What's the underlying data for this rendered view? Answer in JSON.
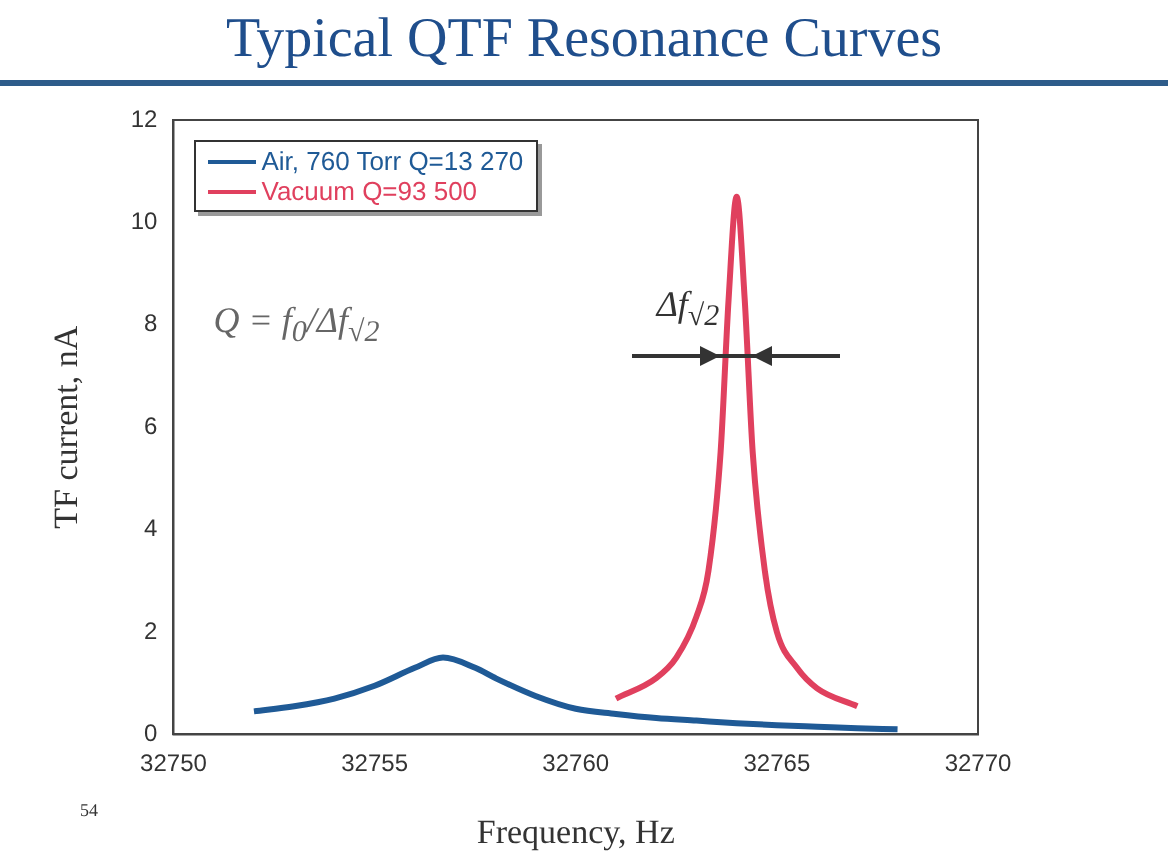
{
  "chart_data": {
    "type": "line",
    "title": "Typical QTF Resonance Curves",
    "xlabel": "Frequency, Hz",
    "ylabel": "TF current, nA",
    "xlim": [
      32750,
      32770
    ],
    "xticks": [
      32750,
      32755,
      32760,
      32765,
      32770
    ],
    "ylim": [
      0,
      12
    ],
    "yticks": [
      0,
      2,
      4,
      6,
      8,
      10,
      12
    ],
    "grid": false,
    "legend": "top left",
    "marker": "none",
    "line_style": "solid",
    "annotations": [
      "Q = f$_{0}$/Δf$_{√2}$",
      {
        "text": "Δf$_{√2}$",
        "x": 32764,
        "y": 7.4
      },
      "54"
    ],
    "series": [
      {
        "name": "Air, 760 Torr Q=13 270",
        "color": "#1f5a96",
        "x": [
          32752,
          32753,
          32754,
          32755,
          32756,
          32756.7,
          32757.5,
          32758,
          32759,
          32760,
          32761,
          32762,
          32763,
          32764,
          32765,
          32766,
          32767,
          32768
        ],
        "values": [
          0.45,
          0.55,
          0.7,
          0.95,
          1.3,
          1.5,
          1.3,
          1.1,
          0.75,
          0.5,
          0.4,
          0.32,
          0.27,
          0.22,
          0.18,
          0.15,
          0.12,
          0.1
        ]
      },
      {
        "name": "Vacuum Q=93 500",
        "color": "#e0405e",
        "x": [
          32761,
          32762,
          32762.5,
          32763,
          32763.3,
          32763.6,
          32763.8,
          32764,
          32764.2,
          32764.4,
          32764.7,
          32765,
          32765.5,
          32766,
          32767
        ],
        "values": [
          0.7,
          1.1,
          1.5,
          2.3,
          3.2,
          5.5,
          8.5,
          10.5,
          8.5,
          5.5,
          3.2,
          2.0,
          1.3,
          0.9,
          0.55
        ]
      }
    ]
  }
}
